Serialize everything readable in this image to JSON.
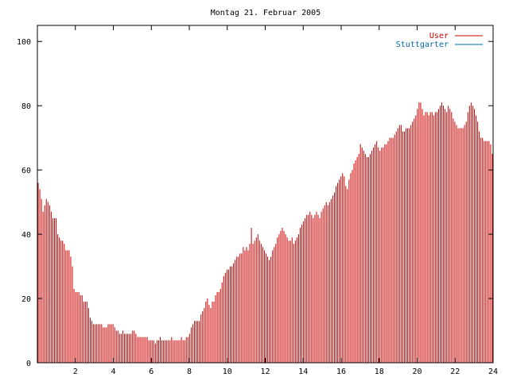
{
  "chart_data": {
    "type": "bar",
    "title": "Montag 21. Februar 2005",
    "xlabel": "",
    "ylabel": "",
    "xlim": [
      0,
      24
    ],
    "ylim": [
      0,
      105
    ],
    "x_ticks": [
      2,
      4,
      6,
      8,
      10,
      12,
      14,
      16,
      18,
      20,
      22,
      24
    ],
    "y_ticks": [
      0,
      20,
      40,
      60,
      80,
      100
    ],
    "grid": false,
    "legend_position": "top-right",
    "series": [
      {
        "name": "User",
        "color": "#cc0000",
        "values": [
          56,
          54,
          51,
          47,
          49,
          51,
          50,
          49,
          47,
          45,
          45,
          45,
          40,
          39,
          38,
          38,
          37,
          35,
          35,
          35,
          33,
          30,
          23,
          22,
          22,
          22,
          21,
          21,
          19,
          19,
          19,
          17,
          14,
          13,
          12,
          12,
          12,
          12,
          12,
          12,
          11,
          11,
          11,
          12,
          12,
          12,
          12,
          11,
          10,
          10,
          9,
          9,
          10,
          9,
          9,
          9,
          9,
          9,
          10,
          10,
          9,
          8,
          8,
          8,
          8,
          8,
          8,
          8,
          7,
          7,
          7,
          7,
          6,
          7,
          7,
          8,
          7,
          7,
          7,
          7,
          7,
          7,
          8,
          7,
          7,
          7,
          7,
          7,
          8,
          7,
          7,
          8,
          8,
          9,
          11,
          12,
          13,
          13,
          13,
          13,
          15,
          16,
          17,
          19,
          20,
          18,
          17,
          19,
          19,
          21,
          22,
          22,
          23,
          25,
          27,
          28,
          29,
          29,
          30,
          30,
          31,
          32,
          33,
          33,
          34,
          34,
          36,
          35,
          36,
          35,
          37,
          42,
          37,
          38,
          39,
          40,
          38,
          37,
          36,
          35,
          34,
          33,
          32,
          33,
          35,
          36,
          37,
          39,
          40,
          41,
          42,
          41,
          40,
          39,
          38,
          38,
          39,
          37,
          38,
          39,
          40,
          42,
          43,
          44,
          45,
          46,
          46,
          47,
          46,
          45,
          46,
          47,
          46,
          45,
          47,
          48,
          49,
          50,
          49,
          50,
          51,
          52,
          53,
          55,
          56,
          57,
          58,
          59,
          58,
          55,
          54,
          57,
          59,
          60,
          62,
          63,
          64,
          65,
          68,
          67,
          66,
          65,
          64,
          64,
          65,
          66,
          67,
          68,
          69,
          67,
          66,
          67,
          67,
          68,
          68,
          69,
          70,
          70,
          70,
          71,
          72,
          73,
          74,
          74,
          72,
          72,
          73,
          73,
          73,
          74,
          75,
          76,
          77,
          79,
          81,
          81,
          79,
          77,
          78,
          78,
          77,
          78,
          78,
          77,
          78,
          78,
          79,
          80,
          81,
          80,
          79,
          78,
          80,
          79,
          78,
          76,
          75,
          74,
          73,
          73,
          73,
          73,
          74,
          75,
          78,
          80,
          81,
          80,
          79,
          77,
          75,
          72,
          70,
          70,
          69,
          69,
          69,
          69,
          68,
          65
        ]
      },
      {
        "name": "Stuttgarter",
        "color": "#0066aa",
        "values": []
      }
    ]
  }
}
